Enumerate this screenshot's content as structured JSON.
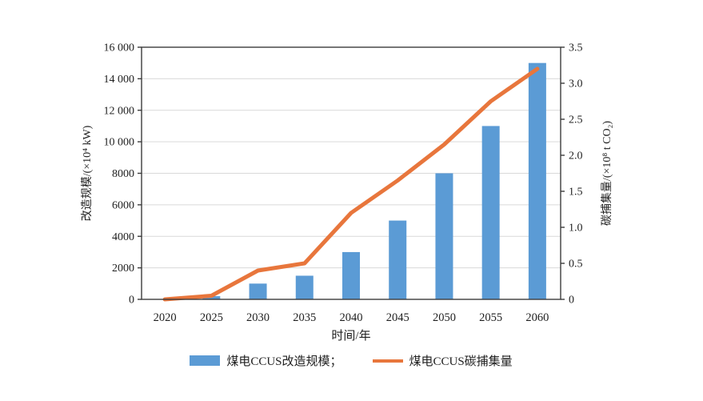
{
  "figure": {
    "background": "#ffffff",
    "text_color": "#1f1f1f",
    "grid_color": "#d9d9d9",
    "frame_color": "#3c3c3c"
  },
  "chart_data": {
    "type": "bar",
    "combo": "bar+line dual axis",
    "title": "",
    "categories": [
      "2020",
      "2025",
      "2030",
      "2035",
      "2040",
      "2045",
      "2050",
      "2055",
      "2060"
    ],
    "series": [
      {
        "name": "煤电CCUS改造规模",
        "kind": "bar",
        "axis": "left",
        "color": "#5b9bd5",
        "values": [
          0,
          200,
          1000,
          1500,
          3000,
          5000,
          8000,
          11000,
          15000
        ]
      },
      {
        "name": "煤电CCUS碳捕集量",
        "kind": "line",
        "axis": "right",
        "color": "#e8763c",
        "values": [
          0,
          0.05,
          0.4,
          0.5,
          1.2,
          1.65,
          2.15,
          2.75,
          3.2
        ]
      }
    ],
    "xlabel": "时间/年",
    "ylabel_left": "改造规模/(×10⁴ kW)",
    "ylabel_right": "碳捕集量/(×10⁸ t CO₂)",
    "ylim_left": [
      0,
      16000
    ],
    "ylim_right": [
      0,
      3.5
    ],
    "left_tick_values": [
      0,
      2000,
      4000,
      6000,
      8000,
      10000,
      12000,
      14000,
      16000
    ],
    "left_tick_labels": [
      "0",
      "2000",
      "4000",
      "6000",
      "8000",
      "10 000",
      "12 000",
      "14 000",
      "16 000"
    ],
    "right_tick_values": [
      0,
      0.5,
      1.0,
      1.5,
      2.0,
      2.5,
      3.0,
      3.5
    ],
    "right_tick_labels": [
      "0",
      "0.5",
      "1.0",
      "1.5",
      "2.0",
      "2.5",
      "3.0",
      "3.5"
    ],
    "grid": "horizontal gridlines on",
    "legend_position": "bottom"
  },
  "legend": {
    "items": [
      {
        "label": "煤电CCUS改造规模；",
        "swatch": "bar",
        "color": "#5b9bd5"
      },
      {
        "label": "煤电CCUS碳捕集量",
        "swatch": "line",
        "color": "#e8763c"
      }
    ]
  }
}
